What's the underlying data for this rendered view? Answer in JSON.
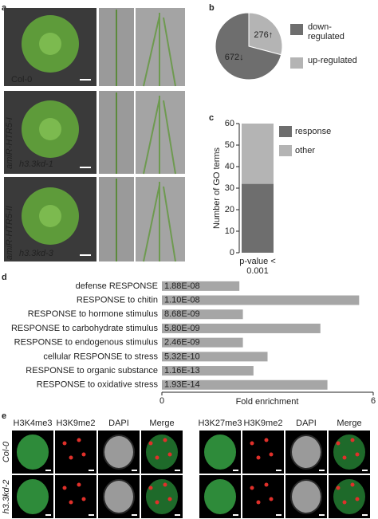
{
  "panel_labels": [
    "a",
    "b",
    "c",
    "d",
    "e"
  ],
  "panel_a": {
    "photo_labels": [
      "Col-0",
      "amiR-HTR5-I",
      "h3.3kd-1",
      "amiR-HTR5-II",
      "h3.3kd-3"
    ]
  },
  "chart_data": [
    {
      "type": "pie",
      "categories": [
        "down-regulated",
        "up-regulated"
      ],
      "values": [
        672,
        276
      ],
      "value_labels": [
        "672↓",
        "276↑"
      ],
      "colors": [
        "#6e6e6e",
        "#b4b4b4"
      ]
    },
    {
      "type": "stacked_bar",
      "y_label": "Number of GO terms",
      "categories": [
        "p-value < 0.001"
      ],
      "series": [
        {
          "name": "response",
          "color": "#6e6e6e",
          "values": [
            32
          ]
        },
        {
          "name": "other",
          "color": "#b4b4b4",
          "values": [
            28
          ]
        }
      ],
      "ylim": [
        0,
        60
      ],
      "yticks": [
        0,
        10,
        20,
        30,
        40,
        50,
        60
      ]
    },
    {
      "type": "hbar",
      "x_label": "Fold enrichment",
      "color": "#a6a6a6",
      "categories": [
        "defense RESPONSE",
        "RESPONSE to chitin",
        "RESPONSE to hormone stimulus",
        "RESPONSE to carbohydrate stimulus",
        "RESPONSE to endogenous stimulus",
        "cellular RESPONSE to stress",
        "RESPONSE to organic substance",
        "RESPONSE to oxidative stress"
      ],
      "values": [
        2.2,
        5.6,
        2.3,
        4.5,
        2.3,
        3.0,
        2.6,
        4.7
      ],
      "bar_labels": [
        "1.88E-08",
        "1.10E-08",
        "8.68E-09",
        "5.80E-09",
        "2.46E-09",
        "5.32E-10",
        "1.16E-13",
        "1.93E-14"
      ],
      "xlim": [
        0,
        6
      ],
      "xticks": [
        0,
        6
      ]
    }
  ],
  "panel_e": {
    "left_headers": [
      "H3K4me3",
      "H3K9me2",
      "DAPI",
      "Merge"
    ],
    "right_headers": [
      "H3K27me3",
      "H3K9me2",
      "DAPI",
      "Merge"
    ],
    "row_labels": [
      "Col-0",
      "h3.3kd-2"
    ]
  }
}
